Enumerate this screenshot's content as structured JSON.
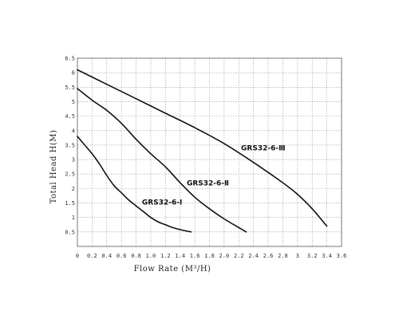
{
  "chart_data": {
    "type": "line",
    "xlabel": "Flow Rate (M³/H)",
    "ylabel": "Total Head H(M)",
    "xlim": [
      0,
      3.6
    ],
    "ylim": [
      0,
      6.5
    ],
    "xticks": [
      "0",
      "0.2",
      "0.4",
      "0.6",
      "0.8",
      "1.0",
      "1.2",
      "1.4",
      "1.6",
      "1.8",
      "2.0",
      "2.2",
      "2.4",
      "2.6",
      "2.8",
      "3",
      "3.2",
      "3.4",
      "3.6"
    ],
    "yticks": [
      "0.5",
      "1",
      "1.5",
      "2",
      "2.5",
      "3",
      "3.5",
      "4",
      "4.5",
      "5",
      "5.5",
      "6",
      "6.5"
    ],
    "grid": true,
    "series": [
      {
        "name": "GRS32-6-Ⅰ",
        "x": [
          0,
          0.1,
          0.2,
          0.3,
          0.4,
          0.5,
          0.6,
          0.7,
          0.8,
          0.9,
          1.0,
          1.1,
          1.2,
          1.3,
          1.4,
          1.55
        ],
        "y": [
          3.8,
          3.5,
          3.2,
          2.85,
          2.45,
          2.1,
          1.85,
          1.6,
          1.4,
          1.2,
          1.0,
          0.85,
          0.75,
          0.65,
          0.58,
          0.5
        ]
      },
      {
        "name": "GRS32-6-Ⅱ",
        "x": [
          0,
          0.2,
          0.4,
          0.6,
          0.8,
          1.0,
          1.2,
          1.4,
          1.6,
          1.8,
          2.0,
          2.2,
          2.3
        ],
        "y": [
          5.45,
          5.05,
          4.7,
          4.25,
          3.7,
          3.2,
          2.75,
          2.2,
          1.7,
          1.3,
          0.95,
          0.65,
          0.5
        ]
      },
      {
        "name": "GRS32-6-Ⅲ",
        "x": [
          0,
          0.4,
          0.8,
          1.2,
          1.6,
          2.0,
          2.4,
          2.8,
          3.0,
          3.2,
          3.4
        ],
        "y": [
          6.1,
          5.6,
          5.1,
          4.6,
          4.1,
          3.55,
          2.9,
          2.2,
          1.8,
          1.3,
          0.7
        ]
      }
    ]
  }
}
